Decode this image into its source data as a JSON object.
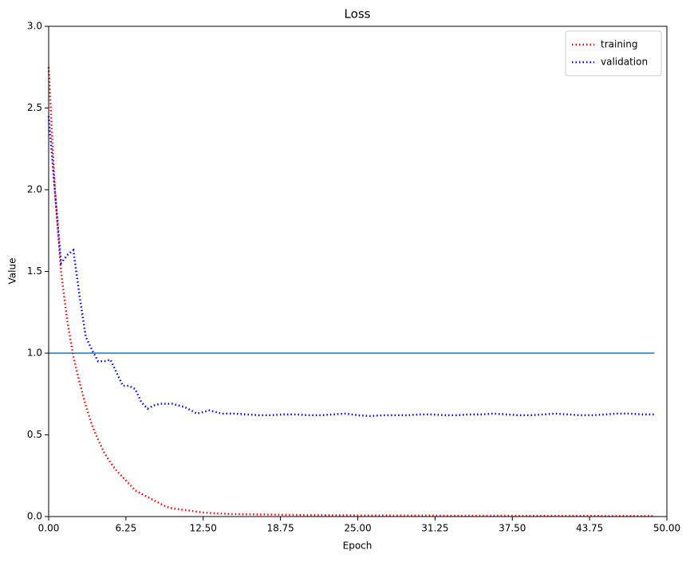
{
  "chart_data": {
    "type": "line",
    "title": "Loss",
    "x_label": "Epoch",
    "y_label": "Value",
    "x": [
      0,
      0.5,
      1,
      1.5,
      2,
      2.5,
      3,
      3.5,
      4,
      4.5,
      5,
      5.5,
      6,
      6.5,
      7,
      7.5,
      8,
      8.5,
      9,
      9.5,
      10,
      10.5,
      11,
      11.5,
      12,
      12.5,
      13,
      13.5,
      14,
      14.5,
      15,
      16,
      17,
      18,
      19,
      20,
      21,
      22,
      23,
      24,
      25,
      26,
      27,
      28,
      29,
      30,
      31,
      32,
      33,
      34,
      35,
      36,
      37,
      38,
      39,
      40,
      41,
      42,
      43,
      44,
      45,
      46,
      47,
      48,
      49
    ],
    "series": [
      {
        "name": "training",
        "color": "#ff0000",
        "values": [
          2.75,
          2.0,
          1.5,
          1.2,
          0.98,
          0.82,
          0.68,
          0.56,
          0.47,
          0.39,
          0.33,
          0.28,
          0.24,
          0.2,
          0.16,
          0.14,
          0.12,
          0.1,
          0.08,
          0.06,
          0.05,
          0.045,
          0.04,
          0.035,
          0.03,
          0.025,
          0.022,
          0.02,
          0.018,
          0.016,
          0.015,
          0.014,
          0.013,
          0.012,
          0.011,
          0.01,
          0.009,
          0.009,
          0.008,
          0.008,
          0.007,
          0.007,
          0.007,
          0.006,
          0.006,
          0.006,
          0.006,
          0.005,
          0.005,
          0.005,
          0.005,
          0.005,
          0.005,
          0.004,
          0.004,
          0.004,
          0.004,
          0.004,
          0.004,
          0.004,
          0.003,
          0.003,
          0.003,
          0.003,
          0.003
        ]
      },
      {
        "name": "validation",
        "color": "#0000ff",
        "values": [
          2.45,
          2.0,
          1.55,
          1.6,
          1.63,
          1.35,
          1.1,
          1.02,
          0.95,
          0.95,
          0.96,
          0.88,
          0.8,
          0.8,
          0.78,
          0.7,
          0.66,
          0.68,
          0.69,
          0.69,
          0.69,
          0.68,
          0.67,
          0.65,
          0.63,
          0.64,
          0.65,
          0.64,
          0.63,
          0.63,
          0.63,
          0.625,
          0.62,
          0.62,
          0.625,
          0.625,
          0.62,
          0.62,
          0.625,
          0.63,
          0.62,
          0.615,
          0.62,
          0.62,
          0.62,
          0.625,
          0.625,
          0.62,
          0.62,
          0.625,
          0.625,
          0.63,
          0.625,
          0.62,
          0.62,
          0.625,
          0.63,
          0.625,
          0.62,
          0.62,
          0.625,
          0.63,
          0.63,
          0.625,
          0.625
        ]
      }
    ],
    "reference_line": {
      "x": [
        0,
        49
      ],
      "values": [
        1,
        1
      ],
      "color": "#1f77b4"
    },
    "xlim": [
      0,
      50
    ],
    "xticks": [
      {
        "value": 0,
        "label": "0.00"
      },
      6.25,
      {
        "value": 12.5,
        "label": "12.50"
      },
      18.75,
      {
        "value": 25,
        "label": "25.00"
      },
      31.25,
      {
        "value": 37.5,
        "label": "37.50"
      },
      43.75,
      {
        "value": 50,
        "label": "50.00"
      }
    ],
    "ylim": [
      0,
      3
    ],
    "yticks": [
      {
        "value": 0,
        "label": "0.0"
      },
      0.5,
      {
        "value": 1,
        "label": "1.0"
      },
      1.5,
      {
        "value": 2,
        "label": "2.0"
      },
      2.5,
      {
        "value": 3,
        "label": "3.0"
      }
    ],
    "legend": "upper right"
  }
}
